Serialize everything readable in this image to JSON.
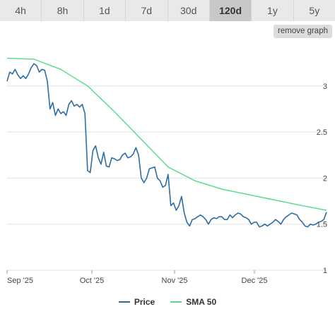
{
  "range_tabs": [
    "4h",
    "8h",
    "1d",
    "7d",
    "30d",
    "120d",
    "1y",
    "5y"
  ],
  "active_tab": "120d",
  "remove_graph_label": "remove graph",
  "colors": {
    "price": "#2e6da4",
    "sma": "#52d98a",
    "grid": "#e2e2e2",
    "active_tab": "#c8c8c8",
    "tab": "#e9e9e9"
  },
  "legend": {
    "price_label": "Price",
    "sma_label": "SMA 50"
  },
  "chart_data": {
    "type": "line",
    "x_tick_labels": [
      "Sep '25",
      "Oct '25",
      "Nov '25",
      "Dec '25"
    ],
    "y_tick_labels": [
      "1",
      "1.5",
      "2",
      "2.5",
      "3"
    ],
    "ylim": [
      1,
      3.45
    ],
    "grid": true,
    "legend_position": "bottom",
    "series": [
      {
        "name": "Price",
        "x": [
          0,
          1,
          2,
          3,
          4,
          5,
          6,
          7,
          8,
          9,
          10,
          11,
          12,
          13,
          14,
          15,
          16,
          17,
          18,
          19,
          20,
          21,
          22,
          23,
          24,
          25,
          26,
          27,
          28,
          29,
          30,
          31,
          32,
          33,
          34,
          35,
          36,
          37,
          38,
          39,
          40,
          41,
          42,
          43,
          44,
          45,
          46,
          47,
          48,
          49,
          50,
          51,
          52,
          53,
          54,
          55,
          56,
          57,
          58,
          59,
          60,
          61,
          62,
          63,
          64,
          65,
          66,
          67,
          68,
          69,
          70,
          71,
          72,
          73,
          74,
          75,
          76,
          77,
          78,
          79,
          80,
          81,
          82,
          83,
          84,
          85,
          86,
          87,
          88,
          89,
          90,
          91,
          92,
          93,
          94,
          95,
          96,
          97,
          98,
          99,
          100,
          101,
          102,
          103,
          104,
          105,
          106,
          107,
          108,
          109,
          110,
          111,
          112,
          113,
          114,
          115,
          116,
          117,
          118,
          119
        ],
        "values": [
          3.05,
          3.15,
          3.13,
          3.18,
          3.12,
          3.08,
          3.11,
          3.08,
          3.13,
          3.2,
          3.24,
          3.22,
          3.15,
          3.18,
          3.17,
          3.05,
          2.75,
          2.82,
          2.68,
          2.75,
          2.7,
          2.72,
          2.68,
          2.8,
          2.84,
          2.78,
          2.8,
          2.77,
          2.8,
          2.7,
          2.08,
          2.06,
          2.3,
          2.35,
          2.22,
          2.15,
          2.28,
          2.13,
          2.12,
          2.22,
          2.21,
          2.19,
          2.2,
          2.25,
          2.27,
          2.22,
          2.23,
          2.26,
          2.33,
          2.25,
          2.0,
          1.95,
          2.0,
          2.1,
          2.11,
          2.12,
          2.0,
          1.97,
          1.9,
          1.92,
          2.04,
          1.7,
          1.73,
          1.65,
          1.7,
          1.8,
          1.62,
          1.52,
          1.48,
          1.55,
          1.56,
          1.58,
          1.6,
          1.58,
          1.55,
          1.5,
          1.55,
          1.57,
          1.56,
          1.58,
          1.58,
          1.55,
          1.55,
          1.6,
          1.57,
          1.6,
          1.62,
          1.61,
          1.58,
          1.57,
          1.55,
          1.5,
          1.52,
          1.52,
          1.47,
          1.48,
          1.5,
          1.48,
          1.5,
          1.52,
          1.55,
          1.53,
          1.5,
          1.55,
          1.58,
          1.6,
          1.62,
          1.61,
          1.6,
          1.55,
          1.52,
          1.48,
          1.47,
          1.5,
          1.49,
          1.5,
          1.52,
          1.53,
          1.55,
          1.63
        ]
      },
      {
        "name": "SMA 50",
        "x": [
          0,
          10,
          20,
          30,
          40,
          50,
          60,
          70,
          80,
          90,
          100,
          110,
          119
        ],
        "values": [
          3.3,
          3.29,
          3.18,
          3.0,
          2.72,
          2.42,
          2.12,
          1.97,
          1.88,
          1.82,
          1.76,
          1.7,
          1.65
        ]
      }
    ]
  }
}
